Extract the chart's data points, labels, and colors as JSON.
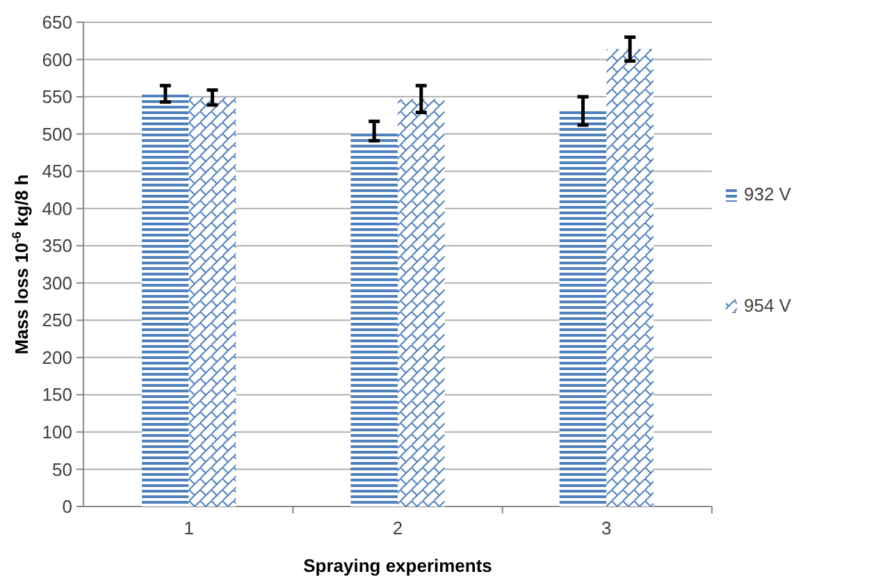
{
  "chart_data": {
    "type": "bar",
    "xlabel": "Spraying experiments",
    "ylabel": "Mass loss 10$^{-6}$ kg/8 h",
    "categories": [
      "1",
      "2",
      "3"
    ],
    "series": [
      {
        "name": "932 V",
        "color": "#4f81bd",
        "values": [
          554,
          504,
          531
        ],
        "errors": [
          11,
          13,
          19
        ]
      },
      {
        "name": "954 V",
        "color": "#4f81bd",
        "values": [
          549,
          547,
          614
        ],
        "errors": [
          10,
          18,
          16
        ]
      }
    ],
    "ylim": [
      0,
      650
    ],
    "yticks": [
      0,
      50,
      100,
      150,
      200,
      250,
      300,
      350,
      400,
      450,
      500,
      550,
      600,
      650
    ],
    "grid": "y",
    "legend": "right"
  }
}
